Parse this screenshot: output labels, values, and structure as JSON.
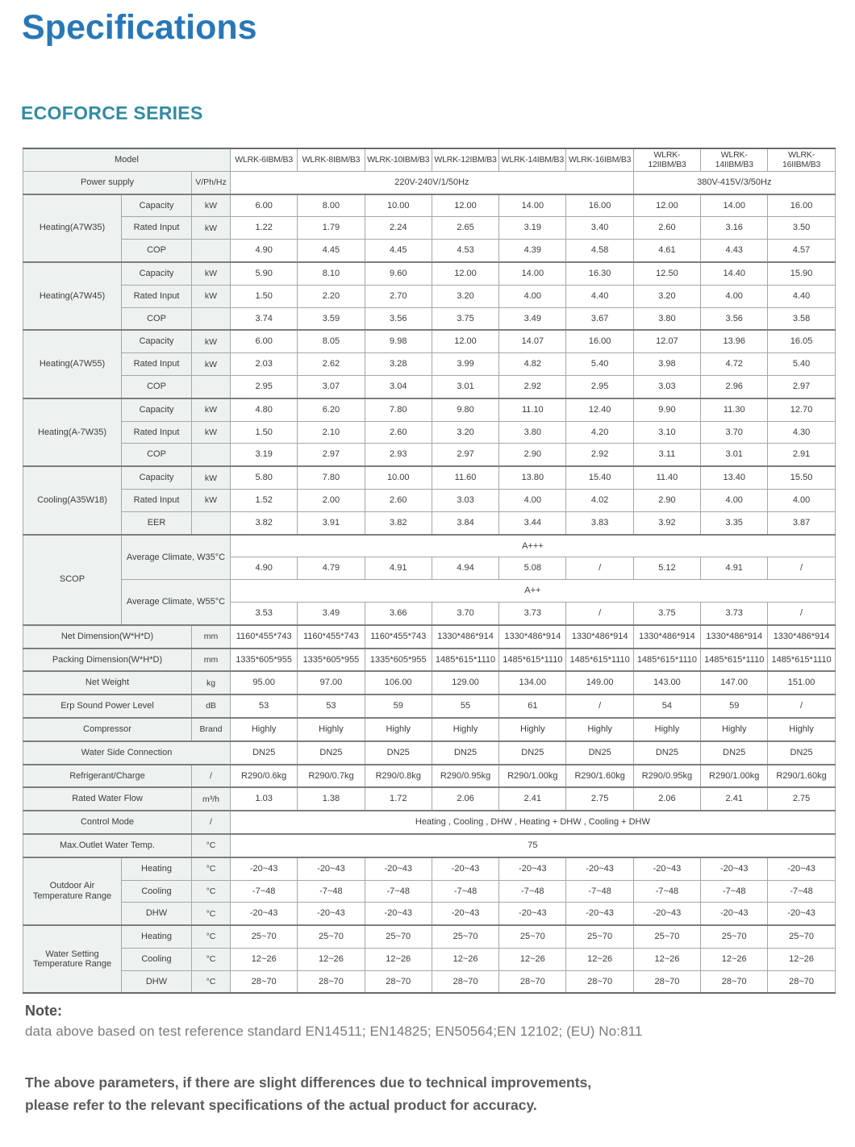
{
  "page": {
    "title": "Specifications",
    "series_title": "ECOFORCE SERIES",
    "note_heading": "Note:",
    "note_text": "data above based on test reference standard EN14511; EN14825; EN50564;EN 12102; (EU) No:811",
    "disclaimer_line1": "The above parameters, if there are slight differences due to technical improvements,",
    "disclaimer_line2": "please refer to the relevant specifications of the actual product for accuracy."
  },
  "colors": {
    "title_blue": "#2878b8",
    "series_teal": "#318ca2",
    "label_cell_bg": "#edf2f1",
    "border_gray": "#a6a6a6",
    "section_border": "#7d7d7d"
  },
  "table": {
    "model_label": "Model",
    "models": [
      "WLRK-6IBM/B3",
      "WLRK-8IBM/B3",
      "WLRK-10IBM/B3",
      "WLRK-12IBM/B3",
      "WLRK-14IBM/B3",
      "WLRK-16IBM/B3",
      "WLRK-12IIBM/B3",
      "WLRK-14IIBM/B3",
      "WLRK-16IIBM/B3"
    ],
    "power_supply": {
      "label": "Power supply",
      "unit": "V/Ph/Hz",
      "group1": "220V-240V/1/50Hz",
      "group2": "380V-415V/3/50Hz"
    },
    "groups": [
      {
        "label": "Heating(A7W35)",
        "rows": [
          {
            "label": "Capacity",
            "unit": "kW",
            "values": [
              "6.00",
              "8.00",
              "10.00",
              "12.00",
              "14.00",
              "16.00",
              "12.00",
              "14.00",
              "16.00"
            ]
          },
          {
            "label": "Rated Input",
            "unit": "kW",
            "values": [
              "1.22",
              "1.79",
              "2.24",
              "2.65",
              "3.19",
              "3.40",
              "2.60",
              "3.16",
              "3.50"
            ]
          },
          {
            "label": "COP",
            "unit": "",
            "values": [
              "4.90",
              "4.45",
              "4.45",
              "4.53",
              "4.39",
              "4.58",
              "4.61",
              "4.43",
              "4.57"
            ]
          }
        ]
      },
      {
        "label": "Heating(A7W45)",
        "rows": [
          {
            "label": "Capacity",
            "unit": "kW",
            "values": [
              "5.90",
              "8.10",
              "9.60",
              "12.00",
              "14.00",
              "16.30",
              "12.50",
              "14.40",
              "15.90"
            ]
          },
          {
            "label": "Rated Input",
            "unit": "kW",
            "values": [
              "1.50",
              "2.20",
              "2.70",
              "3.20",
              "4.00",
              "4.40",
              "3.20",
              "4.00",
              "4.40"
            ]
          },
          {
            "label": "COP",
            "unit": "",
            "values": [
              "3.74",
              "3.59",
              "3.56",
              "3.75",
              "3.49",
              "3.67",
              "3.80",
              "3.56",
              "3.58"
            ]
          }
        ]
      },
      {
        "label": "Heating(A7W55)",
        "rows": [
          {
            "label": "Capacity",
            "unit": "kW",
            "values": [
              "6.00",
              "8.05",
              "9.98",
              "12.00",
              "14.07",
              "16.00",
              "12.07",
              "13.96",
              "16.05"
            ]
          },
          {
            "label": "Rated Input",
            "unit": "kW",
            "values": [
              "2.03",
              "2.62",
              "3.28",
              "3.99",
              "4.82",
              "5.40",
              "3.98",
              "4.72",
              "5.40"
            ]
          },
          {
            "label": "COP",
            "unit": "",
            "values": [
              "2.95",
              "3.07",
              "3.04",
              "3.01",
              "2.92",
              "2.95",
              "3.03",
              "2.96",
              "2.97"
            ]
          }
        ]
      },
      {
        "label": "Heating(A-7W35)",
        "rows": [
          {
            "label": "Capacity",
            "unit": "kW",
            "values": [
              "4.80",
              "6.20",
              "7.80",
              "9.80",
              "11.10",
              "12.40",
              "9.90",
              "11.30",
              "12.70"
            ]
          },
          {
            "label": "Rated Input",
            "unit": "kW",
            "values": [
              "1.50",
              "2.10",
              "2.60",
              "3.20",
              "3.80",
              "4.20",
              "3.10",
              "3.70",
              "4.30"
            ]
          },
          {
            "label": "COP",
            "unit": "",
            "values": [
              "3.19",
              "2.97",
              "2.93",
              "2.97",
              "2.90",
              "2.92",
              "3.11",
              "3.01",
              "2.91"
            ]
          }
        ]
      },
      {
        "label": "Cooling(A35W18)",
        "rows": [
          {
            "label": "Capacity",
            "unit": "kW",
            "values": [
              "5.80",
              "7.80",
              "10.00",
              "11.60",
              "13.80",
              "15.40",
              "11.40",
              "13.40",
              "15.50"
            ]
          },
          {
            "label": "Rated Input",
            "unit": "kW",
            "values": [
              "1.52",
              "2.00",
              "2.60",
              "3.03",
              "4.00",
              "4.02",
              "2.90",
              "4.00",
              "4.00"
            ]
          },
          {
            "label": "EER",
            "unit": "",
            "values": [
              "3.82",
              "3.91",
              "3.82",
              "3.84",
              "3.44",
              "3.83",
              "3.92",
              "3.35",
              "3.87"
            ]
          }
        ]
      }
    ],
    "scop": {
      "label": "SCOP",
      "sub1": {
        "label": "Average Climate, W35°C",
        "rating": "A+++",
        "values": [
          "4.90",
          "4.79",
          "4.91",
          "4.94",
          "5.08",
          "/",
          "5.12",
          "4.91",
          "/"
        ]
      },
      "sub2": {
        "label": "Average Climate, W55°C",
        "rating": "A++",
        "values": [
          "3.53",
          "3.49",
          "3.66",
          "3.70",
          "3.73",
          "/",
          "3.75",
          "3.73",
          "/"
        ]
      }
    },
    "single_rows": [
      {
        "label": "Net Dimension(W*H*D)",
        "unit": "mm",
        "values": [
          "1160*455*743",
          "1160*455*743",
          "1160*455*743",
          "1330*486*914",
          "1330*486*914",
          "1330*486*914",
          "1330*486*914",
          "1330*486*914",
          "1330*486*914"
        ]
      },
      {
        "label": "Packing Dimension(W*H*D)",
        "unit": "mm",
        "values": [
          "1335*605*955",
          "1335*605*955",
          "1335*605*955",
          "1485*615*1110",
          "1485*615*1110",
          "1485*615*1110",
          "1485*615*1110",
          "1485*615*1110",
          "1485*615*1110"
        ]
      },
      {
        "label": "Net Weight",
        "unit": "kg",
        "values": [
          "95.00",
          "97.00",
          "106.00",
          "129.00",
          "134.00",
          "149.00",
          "143.00",
          "147.00",
          "151.00"
        ]
      },
      {
        "label": "Erp Sound Power Level",
        "unit": "dB",
        "values": [
          "53",
          "53",
          "59",
          "55",
          "61",
          "/",
          "54",
          "59",
          "/"
        ]
      },
      {
        "label": "Compressor",
        "unit": "Brand",
        "values": [
          "Highly",
          "Highly",
          "Highly",
          "Highly",
          "Highly",
          "Highly",
          "Highly",
          "Highly",
          "Highly"
        ]
      },
      {
        "label": "Water Side Connection",
        "unit": null,
        "values": [
          "DN25",
          "DN25",
          "DN25",
          "DN25",
          "DN25",
          "DN25",
          "DN25",
          "DN25",
          "DN25"
        ]
      },
      {
        "label": "Refrigerant/Charge",
        "unit": "/",
        "values": [
          "R290/0.6kg",
          "R290/0.7kg",
          "R290/0.8kg",
          "R290/0.95kg",
          "R290/1.00kg",
          "R290/1.60kg",
          "R290/0.95kg",
          "R290/1.00kg",
          "R290/1.60kg"
        ]
      },
      {
        "label": "Rated Water Flow",
        "unit": "m³/h",
        "values": [
          "1.03",
          "1.38",
          "1.72",
          "2.06",
          "2.41",
          "2.75",
          "2.06",
          "2.41",
          "2.75"
        ]
      },
      {
        "label": "Control Mode",
        "unit": "/",
        "span_value": "Heating , Cooling , DHW , Heating + DHW , Cooling + DHW"
      },
      {
        "label": "Max.Outlet Water Temp.",
        "unit": "°C",
        "span_value": "75"
      }
    ],
    "temp_groups": [
      {
        "label": "Outdoor Air Temperature Range",
        "rows": [
          {
            "label": "Heating",
            "unit": "°C",
            "values": [
              "-20~43",
              "-20~43",
              "-20~43",
              "-20~43",
              "-20~43",
              "-20~43",
              "-20~43",
              "-20~43",
              "-20~43"
            ]
          },
          {
            "label": "Cooling",
            "unit": "°C",
            "values": [
              "-7~48",
              "-7~48",
              "-7~48",
              "-7~48",
              "-7~48",
              "-7~48",
              "-7~48",
              "-7~48",
              "-7~48"
            ]
          },
          {
            "label": "DHW",
            "unit": "°C",
            "values": [
              "-20~43",
              "-20~43",
              "-20~43",
              "-20~43",
              "-20~43",
              "-20~43",
              "-20~43",
              "-20~43",
              "-20~43"
            ]
          }
        ]
      },
      {
        "label": "Water Setting Temperature Range",
        "rows": [
          {
            "label": "Heating",
            "unit": "°C",
            "values": [
              "25~70",
              "25~70",
              "25~70",
              "25~70",
              "25~70",
              "25~70",
              "25~70",
              "25~70",
              "25~70"
            ]
          },
          {
            "label": "Cooling",
            "unit": "°C",
            "values": [
              "12~26",
              "12~26",
              "12~26",
              "12~26",
              "12~26",
              "12~26",
              "12~26",
              "12~26",
              "12~26"
            ]
          },
          {
            "label": "DHW",
            "unit": "°C",
            "values": [
              "28~70",
              "28~70",
              "28~70",
              "28~70",
              "28~70",
              "28~70",
              "28~70",
              "28~70",
              "28~70"
            ]
          }
        ]
      }
    ]
  }
}
